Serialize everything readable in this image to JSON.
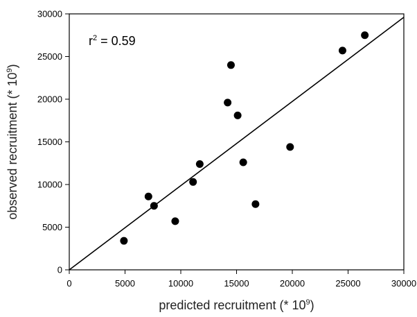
{
  "chart_data": {
    "type": "scatter",
    "title": "",
    "xlabel": "predicted recruitment (* 10",
    "xlabel_exp": "9",
    "xlabel_close": ")",
    "ylabel": "observed recruitment (* 10",
    "ylabel_exp": "9",
    "ylabel_close": ")",
    "xlim": [
      0,
      30000
    ],
    "ylim": [
      0,
      30000
    ],
    "xticks": [
      0,
      5000,
      10000,
      15000,
      20000,
      25000,
      30000
    ],
    "yticks": [
      0,
      5000,
      10000,
      15000,
      20000,
      25000,
      30000
    ],
    "xtick_labels": [
      "0",
      "5000",
      "10000",
      "15000",
      "20000",
      "25000",
      "30000"
    ],
    "ytick_labels": [
      "0",
      "5000",
      "10000",
      "15000",
      "20000",
      "25000",
      "30000"
    ],
    "grid": false,
    "annotation": {
      "r_label": "r",
      "r_exp": "2",
      "r_value": " = 0.59"
    },
    "points": [
      {
        "x": 4900,
        "y": 3400
      },
      {
        "x": 7100,
        "y": 8600
      },
      {
        "x": 7600,
        "y": 7500
      },
      {
        "x": 9500,
        "y": 5700
      },
      {
        "x": 11100,
        "y": 10300
      },
      {
        "x": 11700,
        "y": 12400
      },
      {
        "x": 14200,
        "y": 19600
      },
      {
        "x": 14500,
        "y": 24000
      },
      {
        "x": 15100,
        "y": 18100
      },
      {
        "x": 15600,
        "y": 12600
      },
      {
        "x": 16700,
        "y": 7700
      },
      {
        "x": 19800,
        "y": 14400
      },
      {
        "x": 24500,
        "y": 25700
      },
      {
        "x": 26500,
        "y": 27500
      }
    ],
    "fit_line": {
      "x": [
        0,
        30000
      ],
      "y": [
        0,
        29600
      ]
    },
    "marker_color": "#000000",
    "line_color": "#000000"
  }
}
